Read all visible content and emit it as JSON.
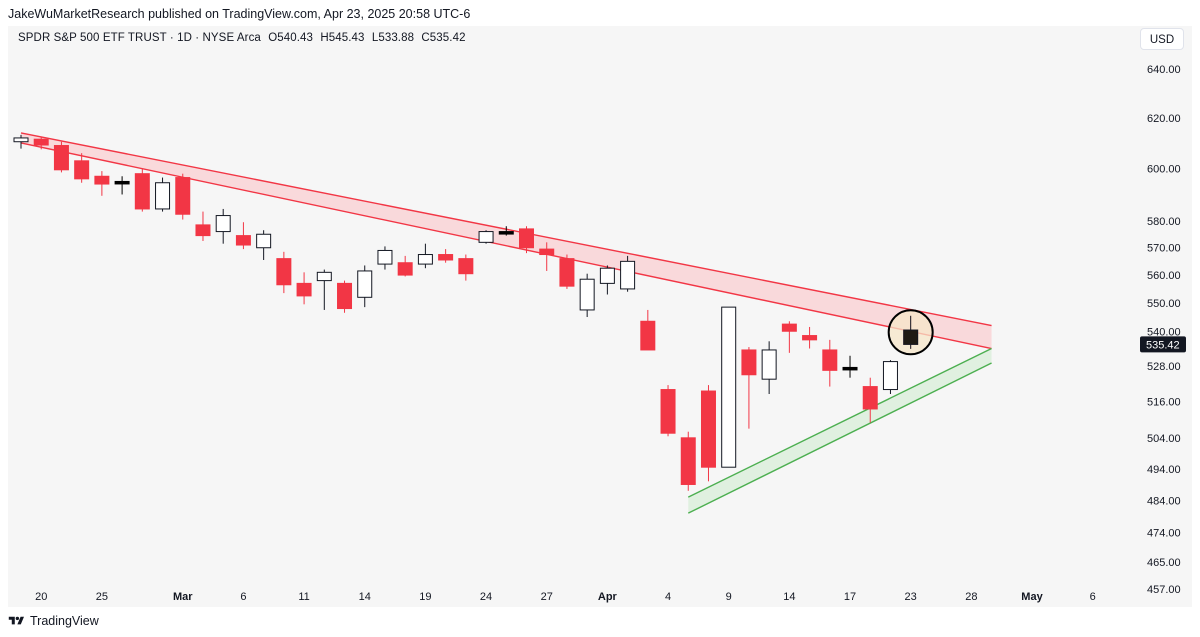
{
  "header": {
    "published_by": "JakeWuMarketResearch published on TradingView.com, Apr 23, 2025 20:58 UTC-6"
  },
  "symbol_bar": {
    "name": "SPDR S&P 500 ETF TRUST · 1D · NYSE Arca",
    "open": "O540.43",
    "high": "H545.43",
    "low": "L533.88",
    "close": "C535.42"
  },
  "currency": "USD",
  "footer": {
    "brand": "TradingView"
  },
  "colors": {
    "up_body": "#ffffff",
    "down_body": "#f23645",
    "doji": "#000000",
    "resistance_line": "#f23645",
    "resistance_fill": "#f9d3d6",
    "support_line": "#4caf50",
    "support_fill": "#dcefdc",
    "price_badge": "#131722"
  },
  "chart_data": {
    "type": "candlestick",
    "symbol": "SPY",
    "timeframe": "1D",
    "currency": "USD",
    "y_scale": "log",
    "ylim": [
      452,
      660
    ],
    "y_ticks": [
      640,
      620,
      600,
      580,
      570,
      560,
      550,
      540,
      528,
      516,
      504,
      494,
      484,
      474,
      465,
      457
    ],
    "x_ticks": [
      {
        "label": "20",
        "bar": 1,
        "bold": false
      },
      {
        "label": "25",
        "bar": 4,
        "bold": false
      },
      {
        "label": "Mar",
        "bar": 8,
        "bold": true
      },
      {
        "label": "6",
        "bar": 11,
        "bold": false
      },
      {
        "label": "11",
        "bar": 14,
        "bold": false
      },
      {
        "label": "14",
        "bar": 17,
        "bold": false
      },
      {
        "label": "19",
        "bar": 20,
        "bold": false
      },
      {
        "label": "24",
        "bar": 23,
        "bold": false
      },
      {
        "label": "27",
        "bar": 26,
        "bold": false
      },
      {
        "label": "Apr",
        "bar": 29,
        "bold": true
      },
      {
        "label": "4",
        "bar": 32,
        "bold": false
      },
      {
        "label": "9",
        "bar": 35,
        "bold": false
      },
      {
        "label": "14",
        "bar": 38,
        "bold": false
      },
      {
        "label": "17",
        "bar": 41,
        "bold": false
      },
      {
        "label": "23",
        "bar": 44,
        "bold": false
      },
      {
        "label": "28",
        "bar": 47,
        "bold": false
      },
      {
        "label": "May",
        "bar": 50,
        "bold": true
      },
      {
        "label": "6",
        "bar": 53,
        "bold": false
      }
    ],
    "last_price": "535.42",
    "ohlc": [
      [
        0,
        610.5,
        613.2,
        607.8,
        612.0
      ],
      [
        1,
        611.5,
        612.5,
        607.5,
        609.2
      ],
      [
        2,
        609.0,
        610.5,
        598.5,
        599.5
      ],
      [
        3,
        603.0,
        606.0,
        594.5,
        596.0
      ],
      [
        4,
        597.0,
        599.0,
        589.5,
        594.0
      ],
      [
        5,
        595.0,
        597.0,
        590.0,
        595.0
      ],
      [
        6,
        598.0,
        600.0,
        583.5,
        584.5
      ],
      [
        7,
        584.5,
        596.5,
        583.5,
        594.5
      ],
      [
        8,
        596.5,
        598.0,
        580.5,
        582.5
      ],
      [
        9,
        578.5,
        583.5,
        572.5,
        574.5
      ],
      [
        10,
        576.0,
        584.5,
        571.5,
        582.0
      ],
      [
        11,
        574.5,
        579.5,
        569.5,
        571.0
      ],
      [
        12,
        570.0,
        576.5,
        565.5,
        575.0
      ],
      [
        13,
        566.0,
        568.5,
        553.5,
        556.5
      ],
      [
        14,
        557.0,
        561.0,
        549.5,
        552.5
      ],
      [
        15,
        558.0,
        562.0,
        547.5,
        561.0
      ],
      [
        16,
        557.0,
        558.0,
        546.5,
        548.0
      ],
      [
        17,
        552.0,
        563.5,
        548.5,
        561.5
      ],
      [
        18,
        564.0,
        570.5,
        562.0,
        569.0
      ],
      [
        19,
        564.5,
        567.0,
        559.5,
        560.0
      ],
      [
        20,
        564.0,
        571.5,
        562.5,
        567.5
      ],
      [
        21,
        567.5,
        569.5,
        564.5,
        565.5
      ],
      [
        22,
        566.0,
        567.5,
        558.0,
        560.5
      ],
      [
        23,
        572.0,
        576.5,
        571.5,
        576.0
      ],
      [
        24,
        576.0,
        578.0,
        574.5,
        576.0
      ],
      [
        25,
        577.0,
        578.0,
        568.0,
        570.0
      ],
      [
        26,
        569.5,
        572.0,
        561.5,
        567.5
      ],
      [
        27,
        566.0,
        567.5,
        555.0,
        556.0
      ],
      [
        28,
        547.5,
        560.5,
        545.0,
        558.5
      ],
      [
        29,
        557.0,
        563.5,
        553.0,
        562.5
      ],
      [
        30,
        555.0,
        567.0,
        554.0,
        565.0
      ],
      [
        31,
        543.5,
        547.5,
        533.5,
        533.5
      ],
      [
        32,
        520.0,
        521.5,
        504.5,
        505.5
      ],
      [
        33,
        504.0,
        506.0,
        487.0,
        489.0
      ],
      [
        34,
        519.5,
        521.5,
        490.0,
        494.5
      ],
      [
        35,
        494.5,
        548.5,
        494.5,
        548.5
      ],
      [
        36,
        533.5,
        534.5,
        507.0,
        525.0
      ],
      [
        37,
        523.5,
        536.5,
        518.5,
        533.5
      ],
      [
        38,
        542.5,
        543.5,
        532.5,
        540.0
      ],
      [
        39,
        538.5,
        541.5,
        534.0,
        537.0
      ],
      [
        40,
        533.5,
        537.0,
        521.0,
        526.5
      ],
      [
        41,
        527.5,
        531.5,
        524.0,
        527.0
      ],
      [
        42,
        521.0,
        524.0,
        509.0,
        513.5
      ],
      [
        43,
        520.0,
        530.0,
        518.5,
        529.5
      ],
      [
        44,
        540.43,
        545.43,
        533.88,
        535.42
      ]
    ],
    "trendlines": {
      "resistance_channel": {
        "upper": [
          [
            0,
            614.0
          ],
          [
            48,
            542.0
          ]
        ],
        "lower": [
          [
            0,
            610.0
          ],
          [
            48,
            534.0
          ]
        ]
      },
      "support_channel": {
        "upper": [
          [
            33,
            485.0
          ],
          [
            48,
            534.0
          ]
        ],
        "lower": [
          [
            33,
            480.0
          ],
          [
            48,
            529.0
          ]
        ]
      }
    },
    "highlight": {
      "bar": 44
    }
  }
}
